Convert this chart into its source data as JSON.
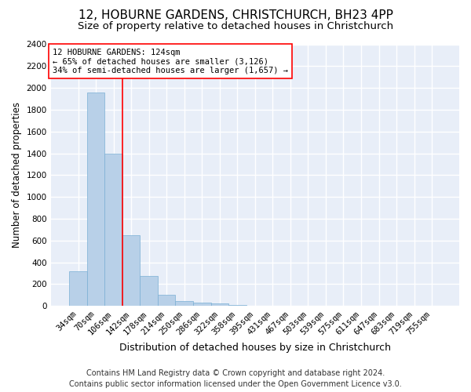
{
  "title1": "12, HOBURNE GARDENS, CHRISTCHURCH, BH23 4PP",
  "title2": "Size of property relative to detached houses in Christchurch",
  "xlabel": "Distribution of detached houses by size in Christchurch",
  "ylabel": "Number of detached properties",
  "bar_color": "#b8d0e8",
  "bar_edge_color": "#7aafd4",
  "background_color": "#e8eef8",
  "grid_color": "white",
  "categories": [
    "34sqm",
    "70sqm",
    "106sqm",
    "142sqm",
    "178sqm",
    "214sqm",
    "250sqm",
    "286sqm",
    "322sqm",
    "358sqm",
    "395sqm",
    "431sqm",
    "467sqm",
    "503sqm",
    "539sqm",
    "575sqm",
    "611sqm",
    "647sqm",
    "683sqm",
    "719sqm",
    "755sqm"
  ],
  "values": [
    320,
    1960,
    1400,
    650,
    275,
    100,
    42,
    32,
    20,
    10,
    0,
    0,
    0,
    0,
    0,
    0,
    0,
    0,
    0,
    0,
    0
  ],
  "ylim": [
    0,
    2400
  ],
  "yticks": [
    0,
    200,
    400,
    600,
    800,
    1000,
    1200,
    1400,
    1600,
    1800,
    2000,
    2200,
    2400
  ],
  "property_bin_index": 2,
  "annotation_title": "12 HOBURNE GARDENS: 124sqm",
  "annotation_line1": "← 65% of detached houses are smaller (3,126)",
  "annotation_line2": "34% of semi-detached houses are larger (1,657) →",
  "annotation_color": "red",
  "footer1": "Contains HM Land Registry data © Crown copyright and database right 2024.",
  "footer2": "Contains public sector information licensed under the Open Government Licence v3.0.",
  "title1_fontsize": 11,
  "title2_fontsize": 9.5,
  "xlabel_fontsize": 9,
  "ylabel_fontsize": 8.5,
  "tick_fontsize": 7.5,
  "footer_fontsize": 7,
  "annot_fontsize": 7.5
}
